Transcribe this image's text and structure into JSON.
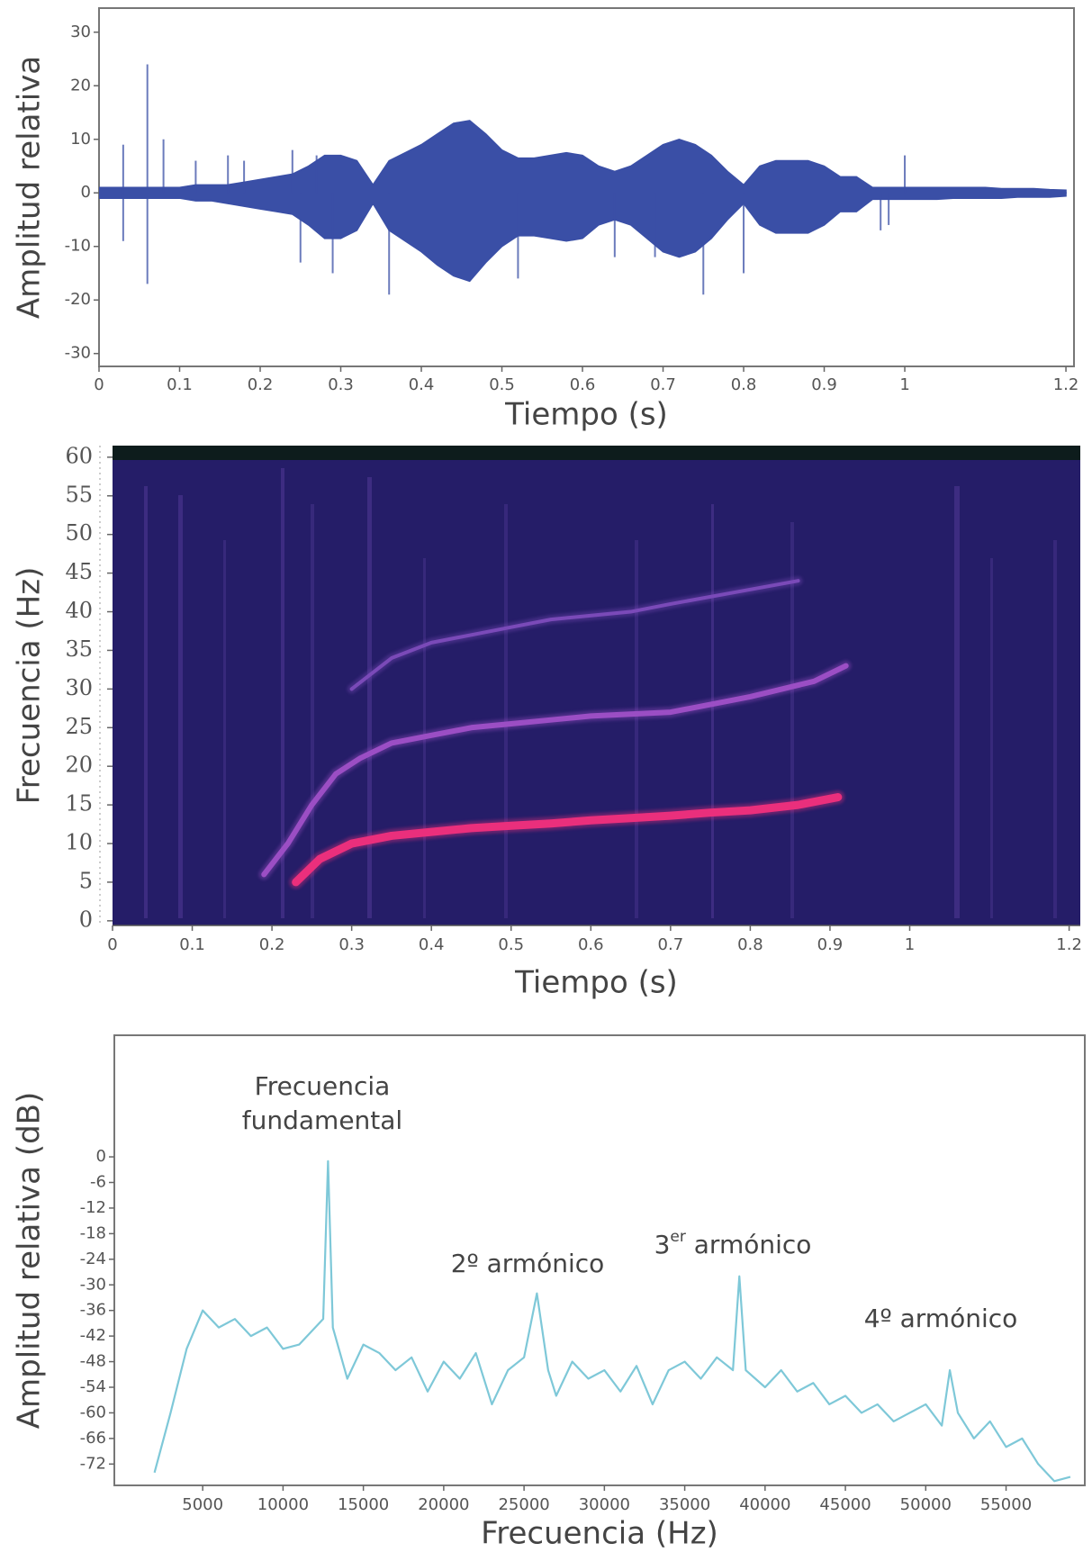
{
  "chart_data": [
    {
      "type": "waveform",
      "xlabel": "Tiempo (s)",
      "ylabel": "Amplitud relativa",
      "xlim": [
        0,
        1.21
      ],
      "ylim": [
        -32.4,
        34.5
      ],
      "xticks": [
        0,
        0.1,
        0.2,
        0.3,
        0.4,
        0.5,
        0.6,
        0.7,
        0.8,
        0.9,
        1,
        1.2
      ],
      "yticks": [
        -30,
        -20,
        -10,
        0,
        10,
        20,
        30
      ],
      "color": "#3a4fa6",
      "x": [
        0,
        0.02,
        0.04,
        0.06,
        0.08,
        0.1,
        0.12,
        0.14,
        0.16,
        0.18,
        0.2,
        0.22,
        0.24,
        0.26,
        0.28,
        0.3,
        0.32,
        0.34,
        0.36,
        0.38,
        0.4,
        0.42,
        0.44,
        0.46,
        0.48,
        0.5,
        0.52,
        0.54,
        0.56,
        0.58,
        0.6,
        0.62,
        0.64,
        0.66,
        0.68,
        0.7,
        0.72,
        0.74,
        0.76,
        0.78,
        0.8,
        0.82,
        0.84,
        0.86,
        0.88,
        0.9,
        0.92,
        0.94,
        0.96,
        0.98,
        1,
        1.02,
        1.04,
        1.06,
        1.08,
        1.1,
        1.12,
        1.14,
        1.16,
        1.18,
        1.2
      ],
      "upper": [
        1,
        1,
        1,
        1,
        1,
        1,
        1.5,
        1.5,
        1.5,
        2,
        2.5,
        3,
        3.5,
        5,
        7,
        7,
        6,
        1.5,
        6,
        7.5,
        9,
        11,
        13,
        13.5,
        11,
        8,
        6.5,
        6.5,
        7,
        7.5,
        7,
        5,
        4,
        5,
        7,
        9,
        10,
        9,
        7,
        4,
        1.5,
        5,
        6,
        6,
        6,
        5,
        3,
        3,
        1,
        1,
        1,
        1,
        1,
        1,
        1,
        1,
        0.8,
        0.8,
        0.8,
        0.6,
        0.5
      ],
      "lower": [
        -1,
        -1,
        -1,
        -1,
        -1,
        -1,
        -1.5,
        -1.5,
        -2,
        -2.5,
        -3,
        -3.5,
        -4,
        -6,
        -8.5,
        -8.5,
        -7,
        -2,
        -7,
        -9,
        -11,
        -13.5,
        -15.5,
        -16.5,
        -13,
        -10,
        -8,
        -8,
        -8.5,
        -9,
        -8.5,
        -6,
        -5,
        -6,
        -8.5,
        -11,
        -12,
        -11,
        -8.5,
        -5,
        -2,
        -6,
        -7.5,
        -7.5,
        -7.5,
        -6,
        -3.5,
        -3.5,
        -1.2,
        -1.2,
        -1.2,
        -1.2,
        -1.2,
        -1,
        -1,
        -1,
        -1,
        -0.8,
        -0.8,
        -0.8,
        -0.6
      ],
      "spikes": {
        "x": [
          0.03,
          0.06,
          0.08,
          0.12,
          0.16,
          0.18,
          0.24,
          0.27,
          0.06,
          0.03,
          0.25,
          0.29,
          0.36,
          0.52,
          0.64,
          0.69,
          0.75,
          0.8,
          0.97,
          1.0,
          0.98
        ],
        "values": [
          9,
          24,
          10,
          6,
          7,
          6,
          8,
          7,
          -17,
          -9,
          -13,
          -15,
          -19,
          -16,
          -12,
          -12,
          -19,
          -15,
          -7,
          7,
          -6
        ]
      }
    },
    {
      "type": "spectrogram",
      "xlabel": "Tiempo (s)",
      "ylabel": "Frecuencia (Hz)",
      "xlim": [
        0,
        1.214
      ],
      "ylim": [
        -0.6,
        61.5
      ],
      "xticks": [
        0,
        0.1,
        0.2,
        0.3,
        0.4,
        0.5,
        0.6,
        0.7,
        0.8,
        0.9,
        1,
        1.2
      ],
      "yticks": [
        0,
        5,
        10,
        15,
        20,
        25,
        30,
        35,
        40,
        45,
        50,
        55,
        60
      ],
      "series": [
        {
          "color": "#ea2f7c",
          "x": [
            0.23,
            0.26,
            0.3,
            0.35,
            0.4,
            0.45,
            0.5,
            0.55,
            0.6,
            0.65,
            0.7,
            0.75,
            0.8,
            0.86,
            0.91
          ],
          "values": [
            5,
            8,
            10,
            11,
            11.5,
            12,
            12.3,
            12.6,
            13,
            13.3,
            13.6,
            14,
            14.3,
            15,
            16
          ]
        },
        {
          "color": "#9b4ec4",
          "x": [
            0.19,
            0.22,
            0.25,
            0.28,
            0.31,
            0.35,
            0.4,
            0.45,
            0.5,
            0.55,
            0.6,
            0.7,
            0.75,
            0.8,
            0.88,
            0.92
          ],
          "values": [
            6,
            10,
            15,
            19,
            21,
            23,
            24,
            25,
            25.5,
            26,
            26.5,
            27,
            28,
            29,
            31,
            33
          ]
        },
        {
          "color": "#7a4ab8",
          "x": [
            0.3,
            0.35,
            0.4,
            0.45,
            0.5,
            0.55,
            0.65,
            0.7,
            0.78,
            0.86
          ],
          "values": [
            30,
            34,
            36,
            37,
            38,
            39,
            40,
            41,
            42.5,
            44
          ]
        }
      ]
    },
    {
      "type": "spectrum",
      "xlabel": "Frecuencia (Hz)",
      "ylabel": "Amplitud relativa (dB)",
      "xlim": [
        -500,
        59900
      ],
      "ylim": [
        -77,
        28.5
      ],
      "xticks": [
        5000,
        10000,
        15000,
        20000,
        25000,
        30000,
        35000,
        40000,
        45000,
        50000,
        55000
      ],
      "yticks": [
        0,
        -6,
        -12,
        -18,
        -24,
        -30,
        -36,
        -42,
        -48,
        -54,
        -60,
        -66,
        -72
      ],
      "color": "#7ec8d8",
      "x": [
        2000,
        3000,
        4000,
        5000,
        6000,
        7000,
        8000,
        9000,
        10000,
        11000,
        12000,
        12500,
        12800,
        13100,
        14000,
        15000,
        16000,
        17000,
        18000,
        19000,
        20000,
        21000,
        22000,
        23000,
        24000,
        25000,
        25800,
        26500,
        27000,
        28000,
        29000,
        30000,
        31000,
        32000,
        33000,
        34000,
        35000,
        36000,
        37000,
        38000,
        38400,
        38800,
        40000,
        41000,
        42000,
        43000,
        44000,
        45000,
        46000,
        47000,
        48000,
        49000,
        50000,
        51000,
        51500,
        52000,
        53000,
        54000,
        55000,
        56000,
        57000,
        58000,
        59000
      ],
      "values": [
        -74,
        -60,
        -45,
        -36,
        -40,
        -38,
        -42,
        -40,
        -45,
        -44,
        -40,
        -38,
        -1,
        -40,
        -52,
        -44,
        -46,
        -50,
        -47,
        -55,
        -48,
        -52,
        -46,
        -58,
        -50,
        -47,
        -32,
        -50,
        -56,
        -48,
        -52,
        -50,
        -55,
        -49,
        -58,
        -50,
        -48,
        -52,
        -47,
        -50,
        -28,
        -50,
        -54,
        -50,
        -55,
        -53,
        -58,
        -56,
        -60,
        -58,
        -62,
        -60,
        -58,
        -63,
        -50,
        -60,
        -66,
        -62,
        -68,
        -66,
        -72,
        -76,
        -75
      ],
      "annotations": [
        {
          "lines": [
            "Frecuencia",
            "fundamental"
          ]
        },
        {
          "text": "2º armónico"
        },
        {
          "text": "3",
          "sup": "er",
          "rest": " armónico"
        },
        {
          "text": "4º armónico"
        }
      ]
    }
  ]
}
